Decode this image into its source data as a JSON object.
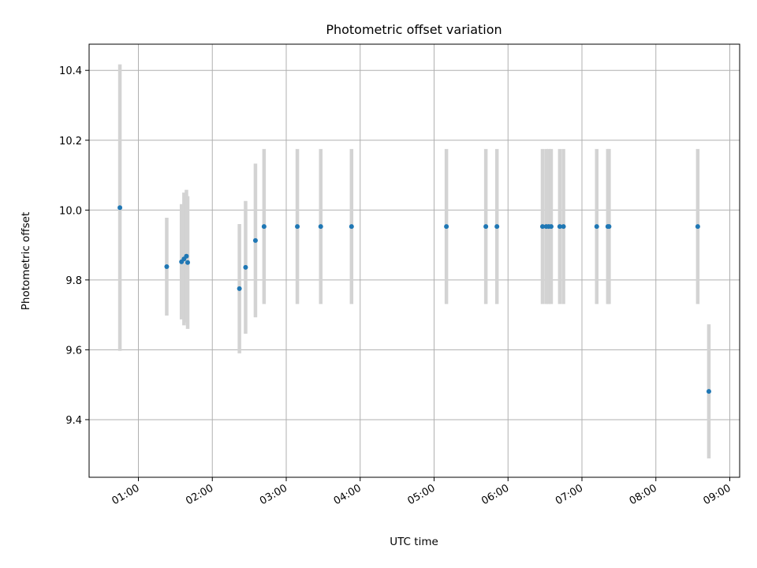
{
  "chart_data": {
    "type": "scatter",
    "title": "Photometric offset variation",
    "xlabel": "UTC time",
    "ylabel": "Photometric offset",
    "xlim": [
      "00:20",
      "09:08"
    ],
    "ylim": [
      9.235,
      10.475
    ],
    "grid": true,
    "x_ticks": [
      "01:00",
      "02:00",
      "03:00",
      "04:00",
      "05:00",
      "06:00",
      "07:00",
      "08:00",
      "09:00"
    ],
    "y_ticks": [
      "9.4",
      "9.6",
      "9.8",
      "10.0",
      "10.2",
      "10.4"
    ],
    "series": [
      {
        "marker_color": "#1f77b4",
        "errorbar_color": "#d3d3d3",
        "points": [
          {
            "x": "00:45",
            "y": 10.007,
            "err": 0.41
          },
          {
            "x": "01:23",
            "y": 9.838,
            "err": 0.14
          },
          {
            "x": "01:35",
            "y": 9.852,
            "err": 0.165
          },
          {
            "x": "01:37",
            "y": 9.86,
            "err": 0.19
          },
          {
            "x": "01:39",
            "y": 9.868,
            "err": 0.19
          },
          {
            "x": "01:40",
            "y": 9.85,
            "err": 0.19
          },
          {
            "x": "02:22",
            "y": 9.775,
            "err": 0.185
          },
          {
            "x": "02:27",
            "y": 9.836,
            "err": 0.19
          },
          {
            "x": "02:35",
            "y": 9.913,
            "err": 0.22
          },
          {
            "x": "02:42",
            "y": 9.953,
            "err": 0.222
          },
          {
            "x": "03:09",
            "y": 9.953,
            "err": 0.222
          },
          {
            "x": "03:28",
            "y": 9.953,
            "err": 0.222
          },
          {
            "x": "03:53",
            "y": 9.953,
            "err": 0.222
          },
          {
            "x": "05:10",
            "y": 9.953,
            "err": 0.222
          },
          {
            "x": "05:42",
            "y": 9.953,
            "err": 0.222
          },
          {
            "x": "05:51",
            "y": 9.953,
            "err": 0.222
          },
          {
            "x": "06:28",
            "y": 9.953,
            "err": 0.222
          },
          {
            "x": "06:31",
            "y": 9.953,
            "err": 0.222
          },
          {
            "x": "06:33",
            "y": 9.953,
            "err": 0.222
          },
          {
            "x": "06:35",
            "y": 9.953,
            "err": 0.222
          },
          {
            "x": "06:42",
            "y": 9.953,
            "err": 0.222
          },
          {
            "x": "06:45",
            "y": 9.953,
            "err": 0.222
          },
          {
            "x": "07:12",
            "y": 9.953,
            "err": 0.222
          },
          {
            "x": "07:21",
            "y": 9.953,
            "err": 0.222
          },
          {
            "x": "07:22",
            "y": 9.953,
            "err": 0.222
          },
          {
            "x": "08:34",
            "y": 9.953,
            "err": 0.222
          },
          {
            "x": "08:43",
            "y": 9.481,
            "err": 0.192
          }
        ]
      }
    ]
  }
}
